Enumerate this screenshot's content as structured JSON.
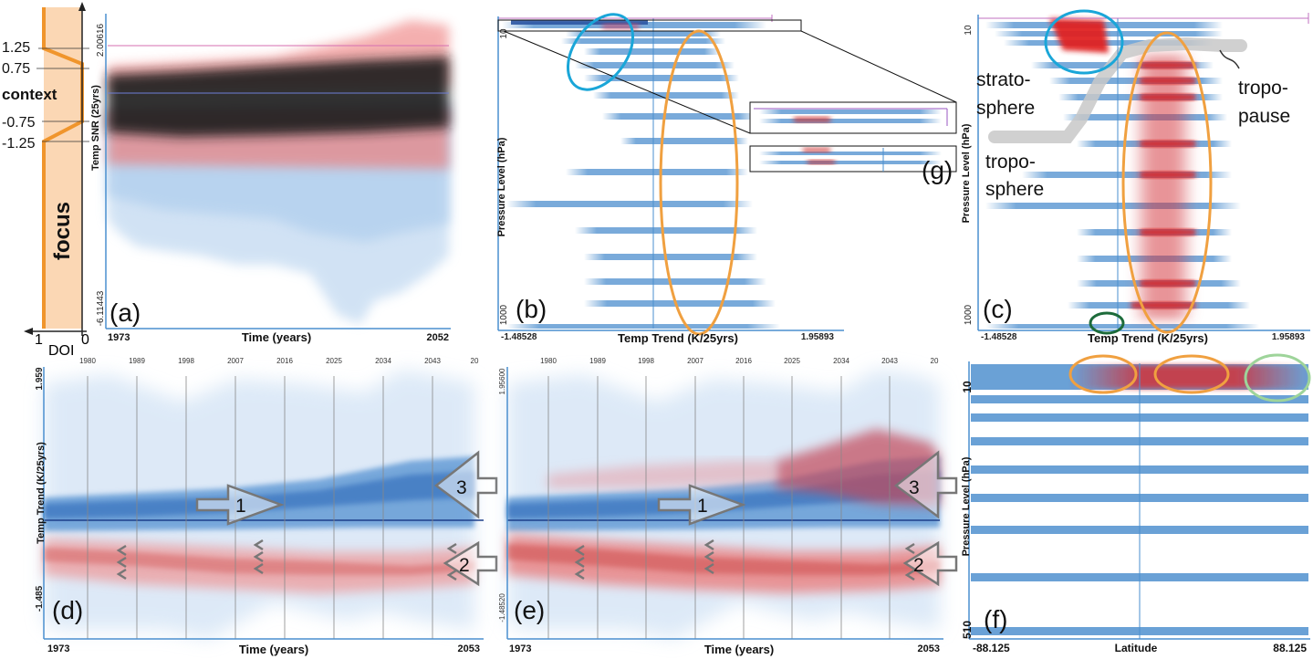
{
  "figure": {
    "panel_labels": [
      "(a)",
      "(b)",
      "(c)",
      "(d)",
      "(e)",
      "(f)",
      "(g)"
    ],
    "doi": {
      "ticks": [
        "1.25",
        "0.75",
        "context",
        "-0.75",
        "-1.25",
        "focus"
      ],
      "axis_label": "DOI",
      "axis_min": "0",
      "axis_max": "1"
    },
    "annotations_c": {
      "stratosphere": [
        "strato-",
        "sphere"
      ],
      "troposphere": [
        "tropo-",
        "sphere"
      ],
      "tropopause": [
        "tropo-",
        "pause"
      ]
    },
    "arrow_labels": [
      "1",
      "2",
      "3"
    ]
  },
  "chart_data": [
    {
      "id": "a",
      "type": "area",
      "xlabel": "Time (years)",
      "ylabel": "Temp SNR (25yrs)",
      "x_ticks": [
        "1973",
        "2052"
      ],
      "y_ticks": [
        "2.00616",
        "-6.11443"
      ],
      "ylim": [
        -6.11443,
        2.00616
      ]
    },
    {
      "id": "b",
      "type": "heatmap",
      "xlabel": "Temp Trend (K/25yrs)",
      "ylabel": "Pressure Level (hPa)",
      "x_ticks": [
        "-1.48528",
        "1.95893"
      ],
      "y_ticks": [
        "10",
        "1000"
      ],
      "xlim": [
        -1.48528,
        1.95893
      ]
    },
    {
      "id": "c",
      "type": "heatmap",
      "xlabel": "Temp Trend (K/25yrs)",
      "ylabel": "Pressure Level (hPa)",
      "x_ticks": [
        "-1.48528",
        "1.95893"
      ],
      "y_ticks": [
        "10",
        "1000"
      ],
      "xlim": [
        -1.48528,
        1.95893
      ]
    },
    {
      "id": "d",
      "type": "line",
      "xlabel": "Time (years)",
      "ylabel": "Temp Trend (K/25yrs)",
      "x_ticks": [
        "1973",
        "2053"
      ],
      "y_ticks": [
        "1.959",
        "-1.485"
      ],
      "top_ticks": [
        "1980",
        "1989",
        "1998",
        "2007",
        "2016",
        "2025",
        "2034",
        "2043",
        "20"
      ],
      "ylim": [
        -1.485,
        1.959
      ]
    },
    {
      "id": "e",
      "type": "line",
      "xlabel": "Time (years)",
      "ylabel": "",
      "x_ticks": [
        "1973",
        "2053"
      ],
      "y_ticks": [
        "1.95600",
        "-1.48520"
      ],
      "top_ticks": [
        "1980",
        "1989",
        "1998",
        "2007",
        "2016",
        "2025",
        "2034",
        "2043",
        "20"
      ],
      "ylim": [
        -1.4852,
        1.956
      ]
    },
    {
      "id": "f",
      "type": "heatmap",
      "xlabel": "Latitude",
      "ylabel": "Pressure Level (hPa)",
      "x_ticks": [
        "-88.125",
        "88.125"
      ],
      "y_ticks": [
        "10",
        "510"
      ],
      "xlim": [
        -88.125,
        88.125
      ]
    }
  ]
}
